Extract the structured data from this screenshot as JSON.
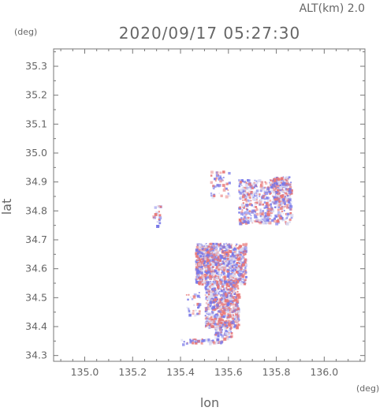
{
  "header": {
    "altitude_label": "ALT(km) 2.0",
    "timestamp": "2020/09/17 05:27:30"
  },
  "chart_data": {
    "type": "scatter",
    "title": "2020/09/17 05:27:30",
    "subtitle": "ALT(km) 2.0",
    "xlabel": "lon",
    "ylabel": "lat",
    "x_unit": "(deg)",
    "y_unit": "(deg)",
    "xlim": [
      134.87,
      136.17
    ],
    "ylim": [
      34.28,
      35.36
    ],
    "x_ticks": [
      "135.0",
      "135.2",
      "135.4",
      "135.6",
      "135.8",
      "136.0"
    ],
    "y_ticks": [
      "34.3",
      "34.4",
      "34.5",
      "34.6",
      "34.7",
      "34.8",
      "34.9",
      "35.0",
      "35.1",
      "35.2",
      "35.3"
    ],
    "grid": false,
    "colors": {
      "positive": "#e87878",
      "negative": "#7878e8",
      "neutral": "#d8d8f0",
      "axis": "#777777",
      "text": "#666666"
    },
    "regions": [
      {
        "lon": [
          135.46,
          135.67
        ],
        "lat": [
          34.55,
          34.69
        ],
        "density": 0.85
      },
      {
        "lon": [
          135.5,
          135.64
        ],
        "lat": [
          34.4,
          34.56
        ],
        "density": 0.75
      },
      {
        "lon": [
          135.54,
          135.61
        ],
        "lat": [
          34.36,
          34.42
        ],
        "density": 0.5
      },
      {
        "lon": [
          135.46,
          135.53
        ],
        "lat": [
          34.6,
          34.68
        ],
        "density": 0.5
      },
      {
        "lon": [
          135.64,
          135.86
        ],
        "lat": [
          34.76,
          34.91
        ],
        "density": 0.45
      },
      {
        "lon": [
          135.78,
          135.86
        ],
        "lat": [
          34.83,
          34.92
        ],
        "density": 0.6
      },
      {
        "lon": [
          135.52,
          135.6
        ],
        "lat": [
          34.85,
          34.94
        ],
        "density": 0.2
      },
      {
        "lon": [
          135.4,
          135.57
        ],
        "lat": [
          34.34,
          34.36
        ],
        "density": 0.4
      },
      {
        "lon": [
          135.28,
          135.32
        ],
        "lat": [
          34.75,
          34.82
        ],
        "density": 0.25
      },
      {
        "lon": [
          135.42,
          135.48
        ],
        "lat": [
          34.44,
          34.52
        ],
        "density": 0.2
      }
    ],
    "seed": 20200917,
    "point_count": 2600
  }
}
